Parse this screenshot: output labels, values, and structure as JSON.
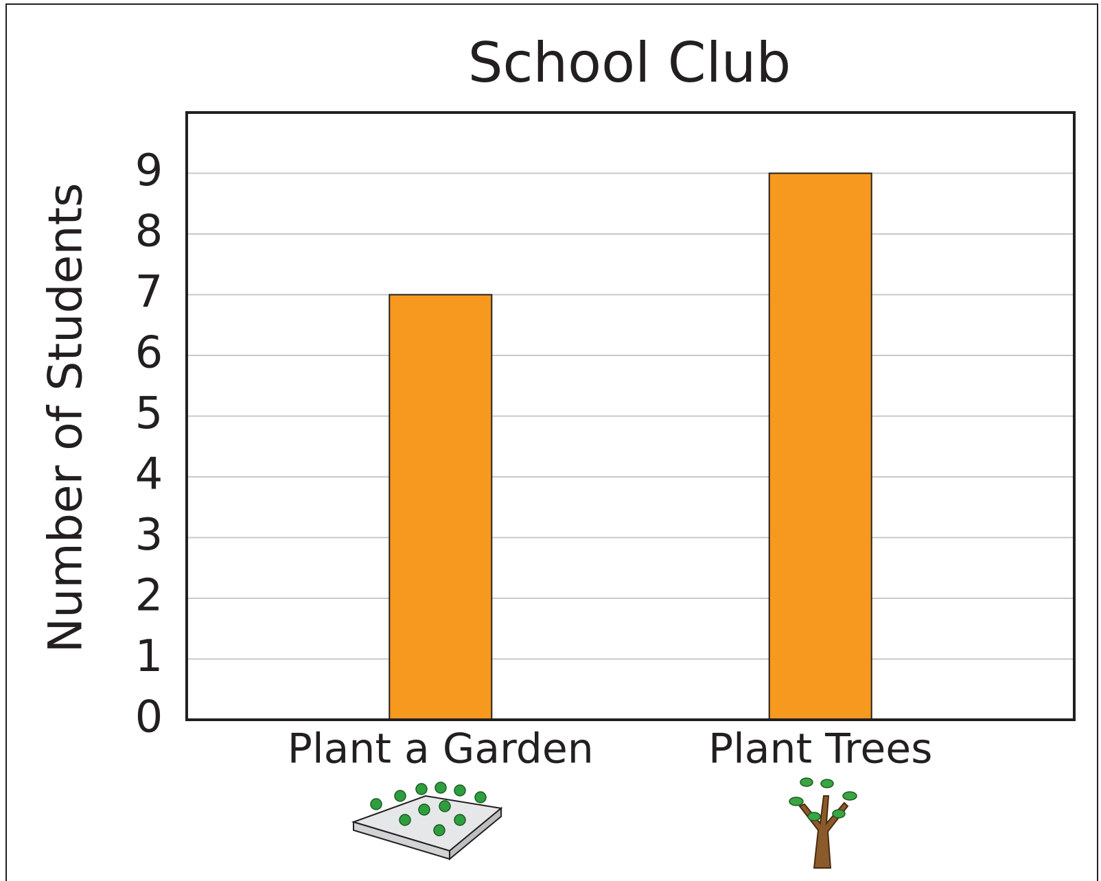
{
  "chart_data": {
    "type": "bar",
    "title": "School Club",
    "y_label": "Number of Students",
    "categories": [
      "Plant a Garden",
      "Plant Trees"
    ],
    "values": [
      7,
      9
    ],
    "color": "#f7991f",
    "ylim": [
      0,
      10
    ],
    "yticks": [
      0,
      1,
      2,
      3,
      4,
      5,
      6,
      7,
      8,
      9
    ],
    "grid": true
  }
}
